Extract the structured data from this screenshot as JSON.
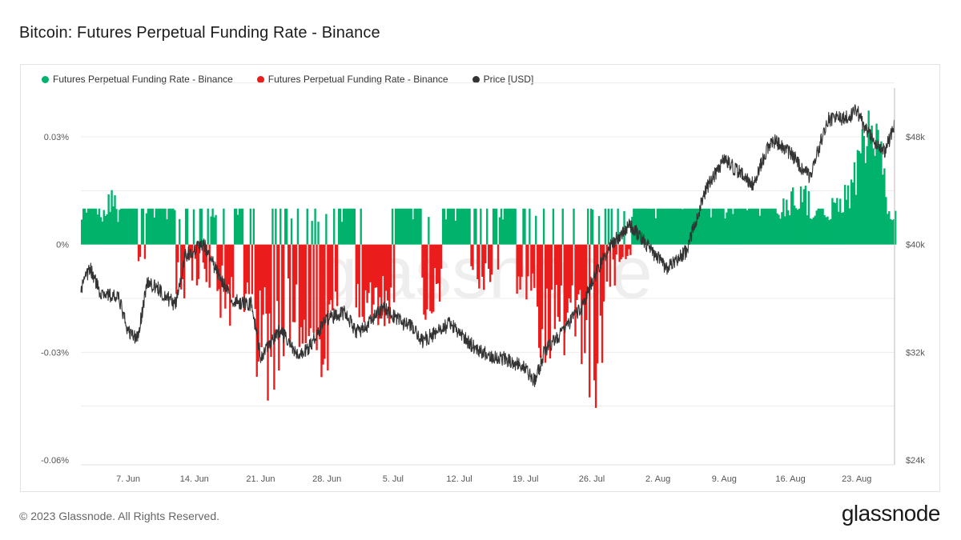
{
  "header": {
    "title": "Bitcoin: Futures Perpetual Funding Rate - Binance"
  },
  "footer": {
    "copyright": "© 2023 Glassnode. All Rights Reserved.",
    "brand": "glassnode"
  },
  "watermark": "glassnode",
  "chart_data": {
    "type": "bar",
    "title": "Bitcoin: Futures Perpetual Funding Rate - Binance",
    "legend_position": "top-left",
    "grid": true,
    "colors": {
      "positive": "#00b26b",
      "negative": "#ea1c1c",
      "price": "#333333"
    },
    "x_ticks": [
      "7. Jun",
      "14. Jun",
      "21. Jun",
      "28. Jun",
      "5. Jul",
      "12. Jul",
      "19. Jul",
      "26. Jul",
      "2. Aug",
      "9. Aug",
      "16. Aug",
      "23. Aug"
    ],
    "x_range": [
      "2021-06-02",
      "2021-08-27"
    ],
    "y_left": {
      "ticks": [
        "0.03%",
        "0%",
        "-0.03%",
        "-0.06%"
      ],
      "ylim": [
        -0.06,
        0.03
      ],
      "unit": "%"
    },
    "y_right": {
      "ticks": [
        "$48k",
        "$40k",
        "$32k",
        "$24k"
      ],
      "ylim": [
        24000,
        48000
      ],
      "unit": "USD"
    },
    "series": [
      {
        "name": "Futures Perpetual Funding Rate - Binance",
        "kind": "funding_positive",
        "color": "#00b26b",
        "anchors": [
          [
            "2021-06-02",
            0.01
          ],
          [
            "2021-06-04",
            0.01
          ],
          [
            "2021-06-05",
            0.018
          ],
          [
            "2021-06-06",
            0.01
          ],
          [
            "2021-06-11",
            0.01
          ],
          [
            "2021-06-16",
            0.01
          ],
          [
            "2021-06-19",
            0.01
          ],
          [
            "2021-06-22",
            0.008
          ],
          [
            "2021-06-30",
            0.01
          ],
          [
            "2021-07-06",
            0.01
          ],
          [
            "2021-07-12",
            0.01
          ],
          [
            "2021-07-18",
            0.01
          ],
          [
            "2021-07-27",
            0.01
          ],
          [
            "2021-08-01",
            0.01
          ],
          [
            "2021-08-06",
            0.01
          ],
          [
            "2021-08-14",
            0.01
          ],
          [
            "2021-08-17",
            0.019
          ],
          [
            "2021-08-19",
            0.01
          ],
          [
            "2021-08-22",
            0.018
          ],
          [
            "2021-08-24",
            0.038
          ],
          [
            "2021-08-25",
            0.04
          ],
          [
            "2021-08-26",
            0.018
          ],
          [
            "2021-08-27",
            0.01
          ]
        ]
      },
      {
        "name": "Futures Perpetual Funding Rate - Binance",
        "kind": "funding_negative",
        "color": "#ea1c1c",
        "anchors": [
          [
            "2021-06-08",
            -0.01
          ],
          [
            "2021-06-09",
            -0.017
          ],
          [
            "2021-06-13",
            -0.015
          ],
          [
            "2021-06-15",
            -0.014
          ],
          [
            "2021-06-20",
            -0.034
          ],
          [
            "2021-06-22",
            -0.052
          ],
          [
            "2021-06-24",
            -0.03
          ],
          [
            "2021-06-26",
            -0.036
          ],
          [
            "2021-06-27",
            -0.05
          ],
          [
            "2021-07-01",
            -0.02
          ],
          [
            "2021-07-04",
            -0.028
          ],
          [
            "2021-07-09",
            -0.022
          ],
          [
            "2021-07-15",
            -0.012
          ],
          [
            "2021-07-19",
            -0.02
          ],
          [
            "2021-07-21",
            -0.038
          ],
          [
            "2021-07-22",
            -0.036
          ],
          [
            "2021-07-24",
            -0.028
          ],
          [
            "2021-07-26",
            -0.053
          ],
          [
            "2021-07-28",
            -0.015
          ],
          [
            "2021-07-29",
            -0.005
          ]
        ]
      },
      {
        "name": "Price [USD]",
        "kind": "price_line",
        "color": "#333333",
        "anchors": [
          [
            "2021-06-02",
            36700
          ],
          [
            "2021-06-03",
            38200
          ],
          [
            "2021-06-04",
            36500
          ],
          [
            "2021-06-06",
            36000
          ],
          [
            "2021-06-07",
            33500
          ],
          [
            "2021-06-08",
            33000
          ],
          [
            "2021-06-09",
            37200
          ],
          [
            "2021-06-10",
            36800
          ],
          [
            "2021-06-12",
            35500
          ],
          [
            "2021-06-13",
            39200
          ],
          [
            "2021-06-15",
            40000
          ],
          [
            "2021-06-16",
            38500
          ],
          [
            "2021-06-18",
            35800
          ],
          [
            "2021-06-20",
            35600
          ],
          [
            "2021-06-21",
            31700
          ],
          [
            "2021-06-22",
            32500
          ],
          [
            "2021-06-23",
            33700
          ],
          [
            "2021-06-25",
            31600
          ],
          [
            "2021-06-26",
            32300
          ],
          [
            "2021-06-28",
            34500
          ],
          [
            "2021-06-30",
            35000
          ],
          [
            "2021-07-01",
            33500
          ],
          [
            "2021-07-02",
            33800
          ],
          [
            "2021-07-04",
            35300
          ],
          [
            "2021-07-06",
            34200
          ],
          [
            "2021-07-07",
            33900
          ],
          [
            "2021-07-08",
            32800
          ],
          [
            "2021-07-11",
            34100
          ],
          [
            "2021-07-13",
            32700
          ],
          [
            "2021-07-15",
            31800
          ],
          [
            "2021-07-17",
            31500
          ],
          [
            "2021-07-19",
            30800
          ],
          [
            "2021-07-20",
            29800
          ],
          [
            "2021-07-21",
            32100
          ],
          [
            "2021-07-23",
            33600
          ],
          [
            "2021-07-25",
            35400
          ],
          [
            "2021-07-26",
            37200
          ],
          [
            "2021-07-28",
            40000
          ],
          [
            "2021-07-30",
            41500
          ],
          [
            "2021-08-01",
            39800
          ],
          [
            "2021-08-03",
            38200
          ],
          [
            "2021-08-05",
            39500
          ],
          [
            "2021-08-07",
            44000
          ],
          [
            "2021-08-09",
            46300
          ],
          [
            "2021-08-12",
            44500
          ],
          [
            "2021-08-14",
            47800
          ],
          [
            "2021-08-16",
            46800
          ],
          [
            "2021-08-18",
            45000
          ],
          [
            "2021-08-20",
            49300
          ],
          [
            "2021-08-22",
            49400
          ],
          [
            "2021-08-23",
            50000
          ],
          [
            "2021-08-24",
            48500
          ],
          [
            "2021-08-25",
            47500
          ],
          [
            "2021-08-26",
            46900
          ],
          [
            "2021-08-27",
            48900
          ]
        ]
      }
    ]
  }
}
